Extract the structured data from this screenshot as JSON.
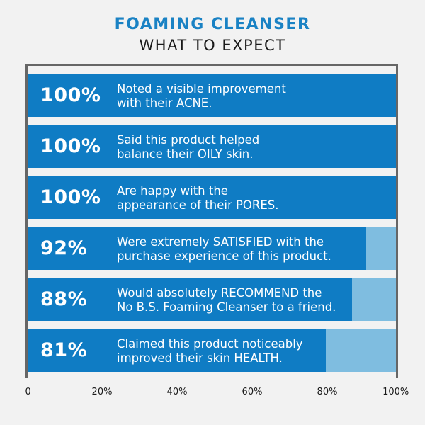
{
  "title": "FOAMING CLEANSER",
  "subtitle": "WHAT TO EXPECT",
  "colors": {
    "fill": "#0f7cc4",
    "track": "#7fbde0",
    "title": "#1a82c4"
  },
  "chart_data": {
    "type": "bar",
    "orientation": "horizontal",
    "xlim": [
      0,
      100
    ],
    "ticks": [
      "0",
      "20%",
      "40%",
      "60%",
      "80%",
      "100%"
    ],
    "grid": false,
    "bars": [
      {
        "label": "100%",
        "value": 100,
        "line1": "Noted a visible improvement",
        "line2": "with their ACNE."
      },
      {
        "label": "100%",
        "value": 100,
        "line1": "Said this product helped",
        "line2": "balance their OILY skin."
      },
      {
        "label": "100%",
        "value": 100,
        "line1": "Are happy with the",
        "line2": "appearance of their PORES."
      },
      {
        "label": "92%",
        "value": 92,
        "line1": "Were extremely SATISFIED with the",
        "line2": "purchase experience of this product."
      },
      {
        "label": "88%",
        "value": 88,
        "line1": "Would absolutely RECOMMEND the",
        "line2": "No B.S. Foaming Cleanser to a friend."
      },
      {
        "label": "81%",
        "value": 81,
        "line1": "Claimed this product noticeably",
        "line2": "improved their skin HEALTH."
      }
    ]
  }
}
